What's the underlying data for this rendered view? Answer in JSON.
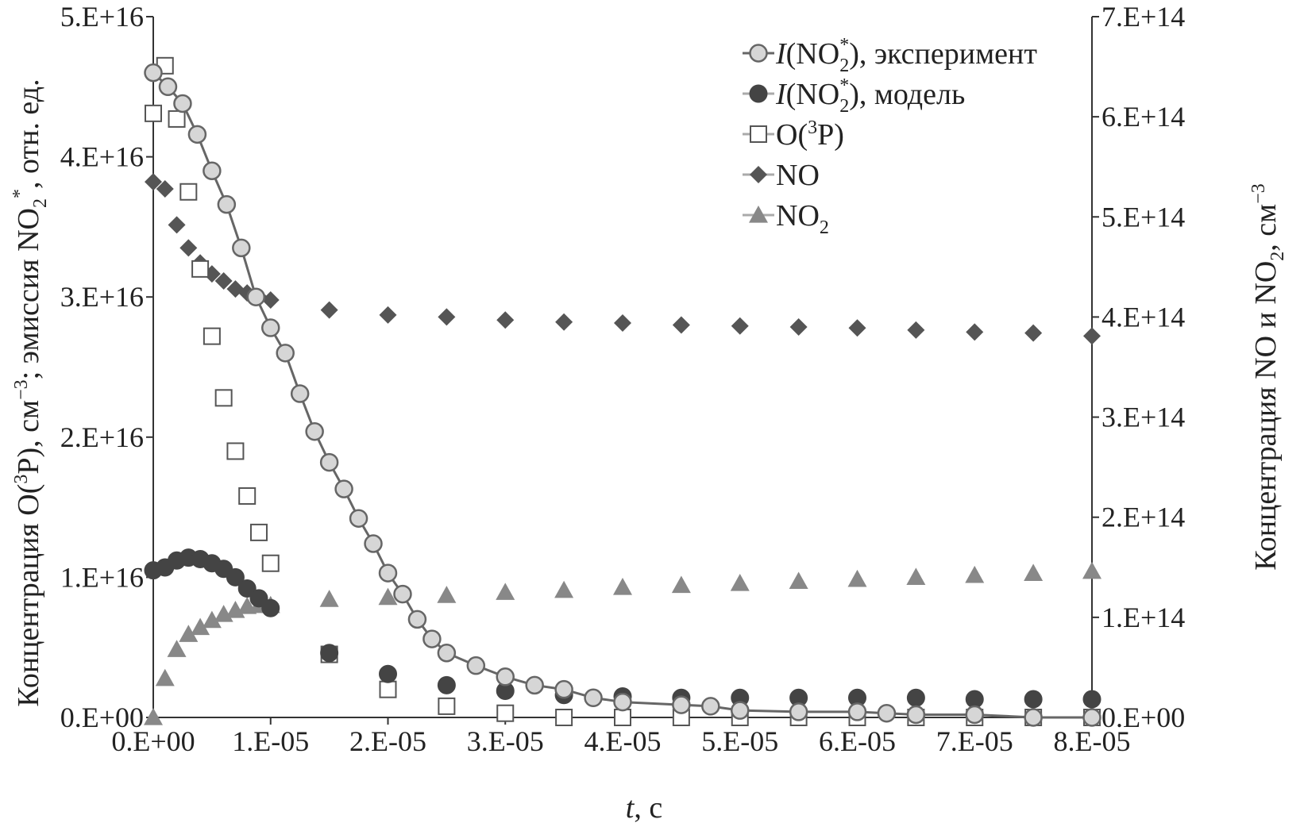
{
  "chart_data": {
    "type": "scatter",
    "title": "",
    "xlabel": "t, с",
    "ylabel_left": "Концентрация O(³P), см⁻³; эмиссия NO₂*, отн. ед.",
    "ylabel_right": "Концентрация NO и NO₂, см⁻³",
    "x_axis": {
      "range": [
        0,
        8e-05
      ],
      "ticks": [
        {
          "value": 0,
          "label": "0.E+00"
        },
        {
          "value": 1e-05,
          "label": "1.E-05"
        },
        {
          "value": 2e-05,
          "label": "2.E-05"
        },
        {
          "value": 3e-05,
          "label": "3.E-05"
        },
        {
          "value": 4e-05,
          "label": "4.E-05"
        },
        {
          "value": 5e-05,
          "label": "5.E-05"
        },
        {
          "value": 6e-05,
          "label": "6.E-05"
        },
        {
          "value": 7e-05,
          "label": "7.E-05"
        },
        {
          "value": 8e-05,
          "label": "8.E-05"
        }
      ]
    },
    "y_left_axis": {
      "range": [
        0,
        5e+16
      ],
      "ticks": [
        {
          "value": 0,
          "label": "0.E+00"
        },
        {
          "value": 1e+16,
          "label": "1.E+16"
        },
        {
          "value": 2e+16,
          "label": "2.E+16"
        },
        {
          "value": 3e+16,
          "label": "3.E+16"
        },
        {
          "value": 4e+16,
          "label": "4.E+16"
        },
        {
          "value": 5e+16,
          "label": "5.E+16"
        }
      ]
    },
    "y_right_axis": {
      "range": [
        0,
        700000000000000.0
      ],
      "ticks": [
        {
          "value": 0,
          "label": "0.E+00"
        },
        {
          "value": 100000000000000.0,
          "label": "1.E+14"
        },
        {
          "value": 200000000000000.0,
          "label": "2.E+14"
        },
        {
          "value": 300000000000000.0,
          "label": "3.E+14"
        },
        {
          "value": 400000000000000.0,
          "label": "4.E+14"
        },
        {
          "value": 500000000000000.0,
          "label": "5.E+14"
        },
        {
          "value": 600000000000000.0,
          "label": "6.E+14"
        },
        {
          "value": 700000000000000.0,
          "label": "7.E+14"
        }
      ]
    },
    "grid": false,
    "legend_position": "top-right",
    "series": [
      {
        "name": "I(NO₂*), эксперимент",
        "axis": "left",
        "marker": "circle-open",
        "line": true,
        "color": "#666666",
        "fill": "#d6d6d6",
        "x": [
          0,
          1.25e-06,
          2.5e-06,
          3.75e-06,
          5e-06,
          6.25e-06,
          7.5e-06,
          8.75e-06,
          1e-05,
          1.125e-05,
          1.25e-05,
          1.375e-05,
          1.5e-05,
          1.625e-05,
          1.75e-05,
          1.875e-05,
          2e-05,
          2.125e-05,
          2.25e-05,
          2.375e-05,
          2.5e-05,
          2.75e-05,
          3e-05,
          3.25e-05,
          3.5e-05,
          3.75e-05,
          4e-05,
          4.5e-05,
          4.75e-05,
          5e-05,
          5.5e-05,
          6e-05,
          6.25e-05,
          6.5e-05,
          7e-05,
          7.5e-05,
          8e-05
        ],
        "y": [
          4.6e+16,
          4.5e+16,
          4.38e+16,
          4.16e+16,
          3.9e+16,
          3.66e+16,
          3.35e+16,
          3e+16,
          2.78e+16,
          2.6e+16,
          2.31e+16,
          2.04e+16,
          1.82e+16,
          1.63e+16,
          1.42e+16,
          1.24e+16,
          1.03e+16,
          8800000000000000.0,
          7000000000000000.0,
          5600000000000000.0,
          4600000000000000.0,
          3700000000000000.0,
          2900000000000000.0,
          2300000000000000.0,
          2000000000000000.0,
          1400000000000000.0,
          1100000000000000.0,
          900000000000000.0,
          800000000000000.0,
          500000000000000.0,
          400000000000000.0,
          400000000000000.0,
          300000000000000.0,
          200000000000000.0,
          200000000000000.0,
          0,
          0
        ]
      },
      {
        "name": "I(NO₂*), модель",
        "axis": "left",
        "marker": "circle-filled",
        "line": false,
        "color": "#444444",
        "x": [
          0,
          1e-06,
          2e-06,
          3e-06,
          4e-06,
          5e-06,
          6e-06,
          7e-06,
          8e-06,
          9e-06,
          1e-05,
          1.5e-05,
          2e-05,
          2.5e-05,
          3e-05,
          3.5e-05,
          4e-05,
          4.5e-05,
          5e-05,
          5.5e-05,
          6e-05,
          6.5e-05,
          7e-05,
          7.5e-05,
          8e-05
        ],
        "y": [
          1.05e+16,
          1.07e+16,
          1.12e+16,
          1.14e+16,
          1.13e+16,
          1.1e+16,
          1.06e+16,
          1e+16,
          9200000000000000.0,
          8500000000000000.0,
          7800000000000000.0,
          4600000000000000.0,
          3100000000000000.0,
          2300000000000000.0,
          1900000000000000.0,
          1600000000000000.0,
          1500000000000000.0,
          1400000000000000.0,
          1400000000000000.0,
          1400000000000000.0,
          1400000000000000.0,
          1400000000000000.0,
          1300000000000000.0,
          1300000000000000.0,
          1300000000000000.0
        ]
      },
      {
        "name": "O(³P)",
        "axis": "left",
        "marker": "square-open",
        "line": false,
        "color": "#555555",
        "x": [
          0,
          1e-06,
          2e-06,
          3e-06,
          4e-06,
          5e-06,
          6e-06,
          7e-06,
          8e-06,
          9e-06,
          1e-05,
          1.5e-05,
          2e-05,
          2.5e-05,
          3e-05,
          3.5e-05,
          4e-05,
          4.5e-05,
          5e-05,
          5.5e-05,
          6e-05,
          6.5e-05,
          7e-05,
          7.5e-05,
          8e-05
        ],
        "y": [
          4.31e+16,
          4.65e+16,
          4.27e+16,
          3.75e+16,
          3.2e+16,
          2.72e+16,
          2.28e+16,
          1.9e+16,
          1.58e+16,
          1.32e+16,
          1.1e+16,
          4500000000000000.0,
          2000000000000000.0,
          800000000000000.0,
          300000000000000.0,
          0,
          0,
          0,
          0,
          0,
          0,
          0,
          0,
          0,
          0
        ]
      },
      {
        "name": "NO",
        "axis": "right",
        "marker": "diamond",
        "line": false,
        "color": "#555555",
        "x": [
          0,
          1e-06,
          2e-06,
          3e-06,
          4e-06,
          5e-06,
          6e-06,
          7e-06,
          8e-06,
          9e-06,
          1e-05,
          1.5e-05,
          2e-05,
          2.5e-05,
          3e-05,
          3.5e-05,
          4e-05,
          4.5e-05,
          5e-05,
          5.5e-05,
          6e-05,
          6.5e-05,
          7e-05,
          7.5e-05,
          8e-05
        ],
        "y": [
          535000000000000.0,
          528000000000000.0,
          492000000000000.0,
          469000000000000.0,
          454000000000000.0,
          443000000000000.0,
          436000000000000.0,
          428000000000000.0,
          424000000000000.0,
          420000000000000.0,
          417000000000000.0,
          407000000000000.0,
          402000000000000.0,
          400000000000000.0,
          397000000000000.0,
          395000000000000.0,
          394000000000000.0,
          392000000000000.0,
          391000000000000.0,
          390000000000000.0,
          389000000000000.0,
          387000000000000.0,
          385000000000000.0,
          384000000000000.0,
          381000000000000.0
        ]
      },
      {
        "name": "NO₂",
        "axis": "right",
        "marker": "triangle",
        "line": false,
        "color": "#888888",
        "x": [
          0,
          1e-06,
          2e-06,
          3e-06,
          4e-06,
          5e-06,
          6e-06,
          7e-06,
          8e-06,
          9e-06,
          1e-05,
          1.5e-05,
          2e-05,
          2.5e-05,
          3e-05,
          3.5e-05,
          4e-05,
          4.5e-05,
          5e-05,
          5.5e-05,
          6e-05,
          6.5e-05,
          7e-05,
          7.5e-05,
          8e-05
        ],
        "y": [
          0,
          39000000000000.0,
          68000000000000.0,
          83000000000000.0,
          90000000000000.0,
          97000000000000.0,
          103000000000000.0,
          107000000000000.0,
          111000000000000.0,
          112000000000000.0,
          112000000000000.0,
          118000000000000.0,
          120000000000000.0,
          122000000000000.0,
          125000000000000.0,
          127000000000000.0,
          130000000000000.0,
          132000000000000.0,
          134000000000000.0,
          136000000000000.0,
          138000000000000.0,
          140000000000000.0,
          142000000000000.0,
          144000000000000.0,
          146000000000000.0
        ]
      }
    ],
    "legend": [
      {
        "label_main": "I",
        "label_rest": "(NO",
        "label_sub": "2",
        "label_sup": "*",
        "label_tail": "), эксперимент"
      },
      {
        "label_main": "I",
        "label_rest": "(NO",
        "label_sub": "2",
        "label_sup": "*",
        "label_tail": "), модель"
      },
      {
        "label_main": "",
        "label_rest": "O(",
        "label_sub": "",
        "label_sup": "3",
        "label_tail": "P)"
      },
      {
        "label_main": "",
        "label_rest": "NO",
        "label_sub": "",
        "label_sup": "",
        "label_tail": ""
      },
      {
        "label_main": "",
        "label_rest": "NO",
        "label_sub": "2",
        "label_sup": "",
        "label_tail": ""
      }
    ]
  }
}
